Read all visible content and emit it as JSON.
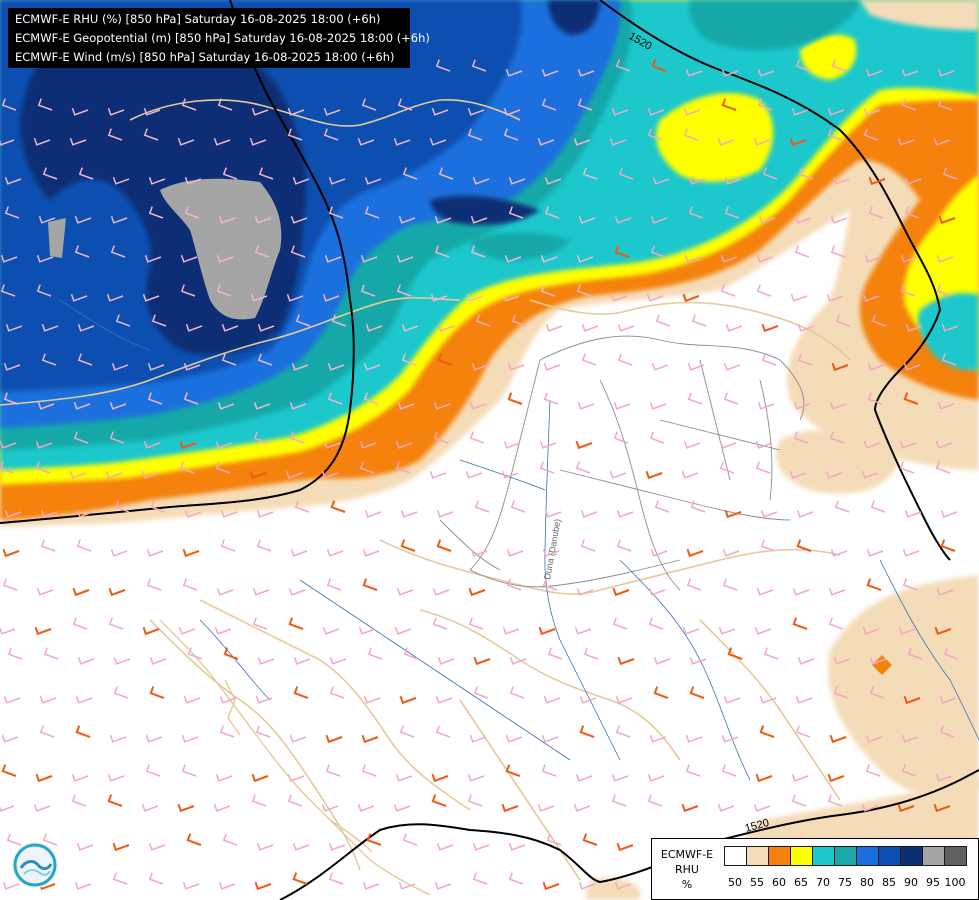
{
  "title_lines": [
    "ECMWF-E RHU (%) [850 hPa] Saturday 16-08-2025 18:00 (+6h)",
    "ECMWF-E Geopotential (m) [850 hPa] Saturday 16-08-2025 18:00 (+6h)",
    "ECMWF-E Wind (m/s) [850 hPa] Saturday 16-08-2025 18:00 (+6h)"
  ],
  "legend": {
    "model": "ECMWF-E",
    "variable": "RHU",
    "unit": "%",
    "colors": [
      "#ffffff",
      "#f5dcb8",
      "#f4820f",
      "#ffff00",
      "#1fc8cc",
      "#18a8a8",
      "#1a6fdd",
      "#0c4fb0",
      "#0b2e74",
      "#a5a5a5",
      "#606060"
    ],
    "ticks": [
      "50",
      "55",
      "60",
      "65",
      "70",
      "75",
      "80",
      "85",
      "90",
      "95",
      "100"
    ]
  },
  "contour_labels": [
    "1520",
    "1520"
  ],
  "river_label": "Duna (Danube)",
  "logo_icon": "wave-logo-icon"
}
